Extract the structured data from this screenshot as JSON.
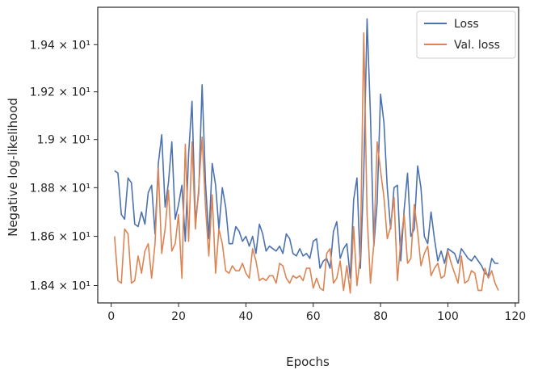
{
  "chart_data": {
    "type": "line",
    "xlabel": "Epochs",
    "ylabel": "Negative log-likelihood",
    "xlim": [
      -4,
      121
    ],
    "ylim": [
      18.33,
      19.56
    ],
    "y_scale": "log",
    "grid": false,
    "legend_position": "top-right",
    "x_ticks": [
      0,
      20,
      40,
      60,
      80,
      100,
      120
    ],
    "y_ticks": [
      {
        "value": 18.4,
        "label": "1.84 × 10¹"
      },
      {
        "value": 18.6,
        "label": "1.86 × 10¹"
      },
      {
        "value": 18.8,
        "label": "1.88 × 10¹"
      },
      {
        "value": 19.0,
        "label": "1.9 × 10¹"
      },
      {
        "value": 19.2,
        "label": "1.92 × 10¹"
      },
      {
        "value": 19.4,
        "label": "1.94 × 10¹"
      }
    ],
    "series": [
      {
        "name": "Loss",
        "color": "#4c72b0",
        "x": [
          1,
          2,
          3,
          4,
          5,
          6,
          7,
          8,
          9,
          10,
          11,
          12,
          13,
          14,
          15,
          16,
          17,
          18,
          19,
          20,
          21,
          22,
          23,
          24,
          25,
          26,
          27,
          28,
          29,
          30,
          31,
          32,
          33,
          34,
          35,
          36,
          37,
          38,
          39,
          40,
          41,
          42,
          43,
          44,
          45,
          46,
          47,
          48,
          49,
          50,
          51,
          52,
          53,
          54,
          55,
          56,
          57,
          58,
          59,
          60,
          61,
          62,
          63,
          64,
          65,
          66,
          67,
          68,
          69,
          70,
          71,
          72,
          73,
          74,
          75,
          76,
          77,
          78,
          79,
          80,
          81,
          82,
          83,
          84,
          85,
          86,
          87,
          88,
          89,
          90,
          91,
          92,
          93,
          94,
          95,
          96,
          97,
          98,
          99,
          100,
          101,
          102,
          103,
          104,
          105,
          106,
          107,
          108,
          109,
          110,
          111,
          112,
          113,
          114,
          115
        ],
        "values": [
          18.87,
          18.86,
          18.69,
          18.67,
          18.84,
          18.82,
          18.65,
          18.64,
          18.7,
          18.65,
          18.78,
          18.81,
          18.61,
          18.9,
          19.02,
          18.72,
          18.82,
          18.99,
          18.67,
          18.73,
          18.81,
          18.58,
          18.94,
          19.16,
          18.66,
          18.78,
          19.23,
          18.82,
          18.59,
          18.9,
          18.81,
          18.63,
          18.8,
          18.72,
          18.57,
          18.57,
          18.64,
          18.62,
          18.58,
          18.6,
          18.56,
          18.6,
          18.53,
          18.65,
          18.61,
          18.54,
          18.56,
          18.55,
          18.54,
          18.56,
          18.53,
          18.61,
          18.59,
          18.53,
          18.52,
          18.55,
          18.52,
          18.53,
          18.51,
          18.58,
          18.59,
          18.47,
          18.5,
          18.51,
          18.47,
          18.62,
          18.66,
          18.51,
          18.55,
          18.57,
          18.43,
          18.75,
          18.84,
          18.47,
          18.86,
          19.51,
          19.1,
          18.56,
          18.74,
          19.19,
          19.07,
          18.8,
          18.63,
          18.8,
          18.81,
          18.5,
          18.71,
          18.86,
          18.6,
          18.63,
          18.89,
          18.8,
          18.6,
          18.57,
          18.7,
          18.59,
          18.5,
          18.54,
          18.49,
          18.55,
          18.54,
          18.53,
          18.49,
          18.55,
          18.53,
          18.51,
          18.5,
          18.52,
          18.5,
          18.48,
          18.45,
          18.44,
          18.51,
          18.49,
          18.49
        ]
      },
      {
        "name": "Val. loss",
        "color": "#dd8452",
        "x": [
          1,
          2,
          3,
          4,
          5,
          6,
          7,
          8,
          9,
          10,
          11,
          12,
          13,
          14,
          15,
          16,
          17,
          18,
          19,
          20,
          21,
          22,
          23,
          24,
          25,
          26,
          27,
          28,
          29,
          30,
          31,
          32,
          33,
          34,
          35,
          36,
          37,
          38,
          39,
          40,
          41,
          42,
          43,
          44,
          45,
          46,
          47,
          48,
          49,
          50,
          51,
          52,
          53,
          54,
          55,
          56,
          57,
          58,
          59,
          60,
          61,
          62,
          63,
          64,
          65,
          66,
          67,
          68,
          69,
          70,
          71,
          72,
          73,
          74,
          75,
          76,
          77,
          78,
          79,
          80,
          81,
          82,
          83,
          84,
          85,
          86,
          87,
          88,
          89,
          90,
          91,
          92,
          93,
          94,
          95,
          96,
          97,
          98,
          99,
          100,
          101,
          102,
          103,
          104,
          105,
          106,
          107,
          108,
          109,
          110,
          111,
          112,
          113,
          114,
          115
        ],
        "values": [
          18.6,
          18.42,
          18.41,
          18.63,
          18.61,
          18.41,
          18.42,
          18.52,
          18.45,
          18.54,
          18.57,
          18.43,
          18.57,
          18.88,
          18.53,
          18.63,
          18.79,
          18.54,
          18.57,
          18.69,
          18.43,
          18.98,
          18.58,
          18.99,
          18.63,
          18.8,
          19.01,
          18.72,
          18.52,
          18.77,
          18.45,
          18.63,
          18.57,
          18.46,
          18.45,
          18.48,
          18.46,
          18.46,
          18.49,
          18.45,
          18.43,
          18.55,
          18.5,
          18.42,
          18.43,
          18.42,
          18.44,
          18.44,
          18.41,
          18.49,
          18.48,
          18.43,
          18.41,
          18.44,
          18.43,
          18.44,
          18.42,
          18.47,
          18.47,
          18.39,
          18.43,
          18.39,
          18.38,
          18.53,
          18.55,
          18.41,
          18.43,
          18.5,
          18.38,
          18.48,
          18.37,
          18.64,
          18.4,
          18.52,
          19.45,
          18.69,
          18.41,
          18.57,
          18.99,
          18.87,
          18.76,
          18.59,
          18.64,
          18.76,
          18.42,
          18.58,
          18.69,
          18.49,
          18.51,
          18.73,
          18.62,
          18.48,
          18.53,
          18.56,
          18.44,
          18.47,
          18.49,
          18.43,
          18.44,
          18.54,
          18.49,
          18.45,
          18.41,
          18.52,
          18.41,
          18.42,
          18.46,
          18.45,
          18.38,
          18.38,
          18.47,
          18.43,
          18.46,
          18.41,
          18.38
        ]
      }
    ]
  }
}
